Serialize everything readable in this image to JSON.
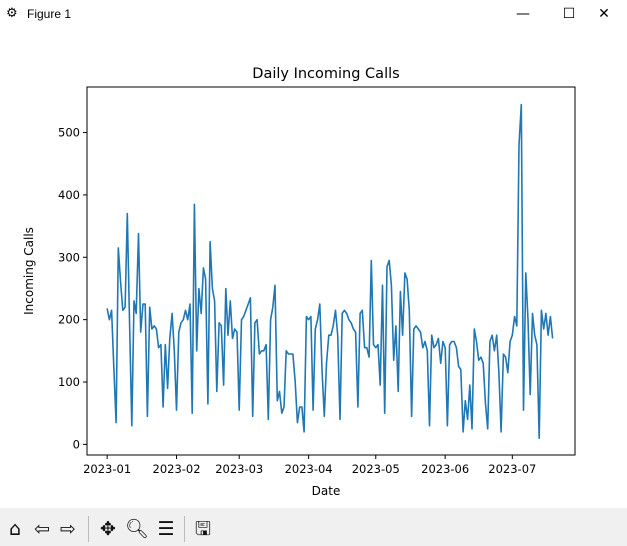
{
  "window": {
    "title": "Figure 1",
    "minimize": "—",
    "maximize": "☐",
    "close": "✕"
  },
  "toolbar": {
    "icons": [
      "home-icon",
      "back-icon",
      "forward-icon",
      "pan-icon",
      "zoom-icon",
      "configure-subplots-icon",
      "save-icon"
    ]
  },
  "chart_data": {
    "type": "line",
    "title": "Daily Incoming Calls",
    "xlabel": "Date",
    "ylabel": "Incoming Calls",
    "x_start": "2023-01-01",
    "x_frequency": "daily",
    "xticks": [
      "2023-01",
      "2023-02",
      "2023-03",
      "2023-04",
      "2023-05",
      "2023-06",
      "2023-07"
    ],
    "xtick_days": [
      0,
      31,
      59,
      90,
      120,
      151,
      181
    ],
    "yticks": [
      0,
      100,
      200,
      300,
      400,
      500
    ],
    "xlim_days": [
      -9,
      209
    ],
    "ylim": [
      -17,
      573
    ],
    "grid": false,
    "color": "#1f77b4",
    "values": [
      218,
      200,
      215,
      120,
      35,
      315,
      260,
      215,
      220,
      370,
      200,
      30,
      230,
      210,
      338,
      180,
      225,
      225,
      45,
      220,
      185,
      190,
      185,
      155,
      160,
      60,
      160,
      90,
      170,
      210,
      150,
      55,
      180,
      195,
      200,
      215,
      200,
      225,
      50,
      385,
      150,
      250,
      210,
      283,
      265,
      65,
      325,
      250,
      230,
      85,
      195,
      190,
      95,
      250,
      175,
      230,
      170,
      185,
      180,
      55,
      200,
      205,
      215,
      225,
      235,
      45,
      195,
      200,
      145,
      150,
      150,
      160,
      40,
      200,
      220,
      255,
      70,
      85,
      50,
      60,
      150,
      145,
      145,
      145,
      100,
      35,
      60,
      60,
      20,
      205,
      200,
      205,
      55,
      185,
      200,
      225,
      120,
      45,
      130,
      175,
      175,
      190,
      215,
      175,
      40,
      210,
      215,
      210,
      200,
      195,
      185,
      180,
      60,
      210,
      215,
      155,
      155,
      140,
      295,
      160,
      155,
      160,
      95,
      255,
      50,
      285,
      295,
      255,
      135,
      190,
      85,
      245,
      175,
      275,
      265,
      215,
      45,
      185,
      190,
      185,
      180,
      155,
      165,
      150,
      30,
      175,
      155,
      160,
      170,
      130,
      165,
      155,
      30,
      160,
      165,
      165,
      155,
      125,
      120,
      20,
      70,
      40,
      95,
      25,
      185,
      165,
      135,
      140,
      130,
      65,
      25,
      165,
      175,
      150,
      175,
      115,
      20,
      145,
      140,
      115,
      165,
      175,
      205,
      190,
      480,
      545,
      55,
      275,
      200,
      80,
      210,
      175,
      160,
      10,
      215,
      185,
      210,
      175,
      205,
      170
    ]
  }
}
